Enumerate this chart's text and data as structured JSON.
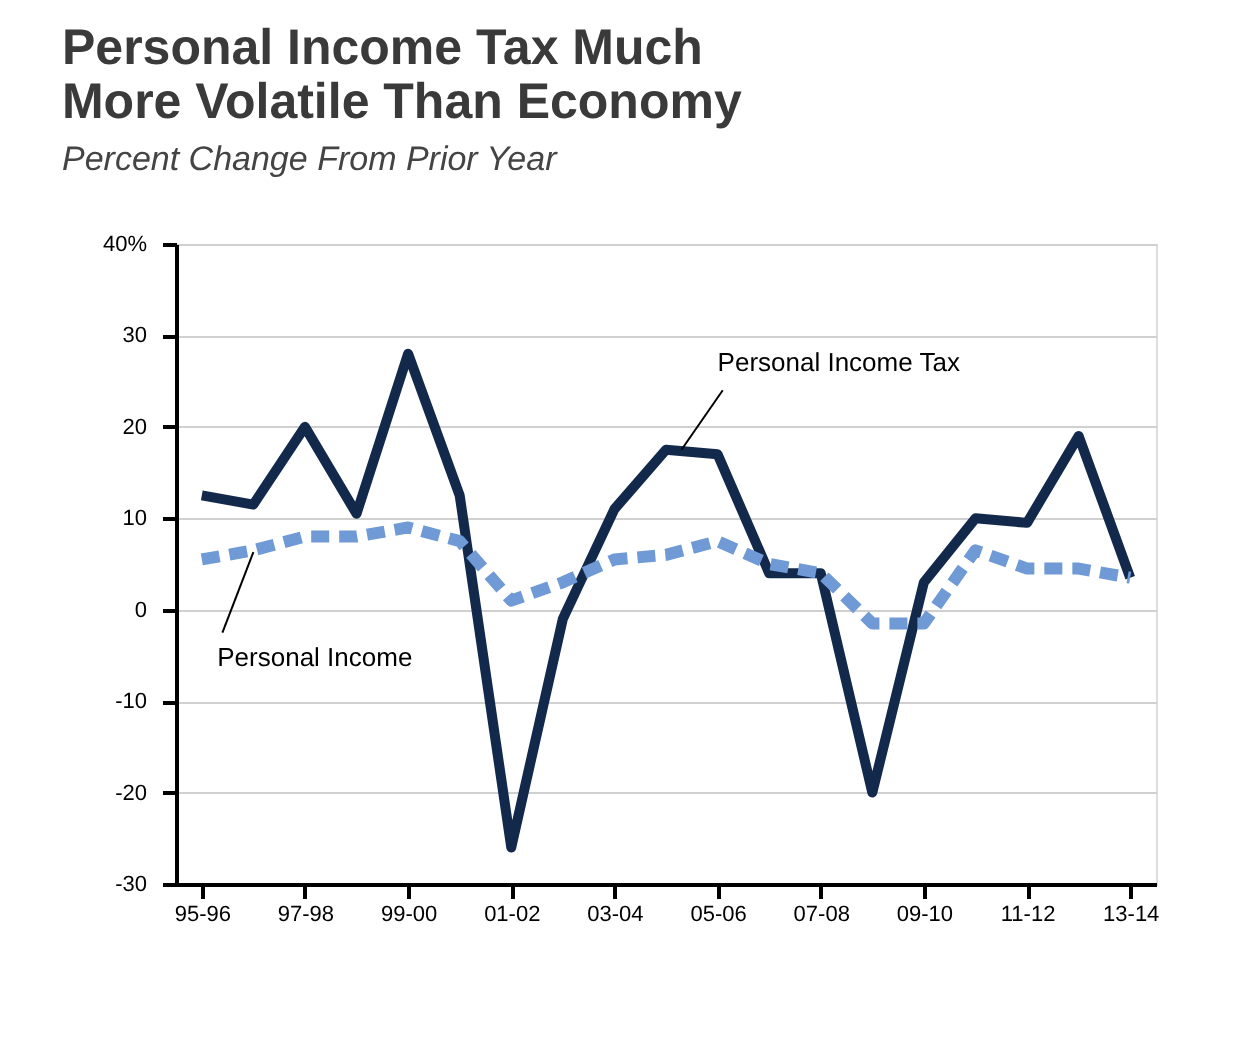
{
  "chart_data": {
    "type": "line",
    "title": [
      "Personal Income Tax Much",
      "More Volatile Than Economy"
    ],
    "subtitle": "Percent Change From Prior Year",
    "categories": [
      "95-96",
      null,
      "97-98",
      null,
      "99-00",
      null,
      "01-02",
      null,
      "03-04",
      null,
      "05-06",
      null,
      "07-08",
      null,
      "09-10",
      null,
      "11-12",
      null,
      "13-14"
    ],
    "series": [
      {
        "name": "Personal Income Tax",
        "color": "#13294b",
        "line_style": "solid",
        "values": [
          12.5,
          11.5,
          20,
          10.5,
          28,
          12.5,
          -26,
          -1,
          11,
          17.5,
          17,
          4,
          4,
          -20,
          3,
          10,
          9.5,
          19,
          3.5
        ]
      },
      {
        "name": "Personal Income",
        "color": "#6f9ad6",
        "line_style": "dashed",
        "values": [
          5.5,
          6.5,
          8,
          8,
          9,
          7.5,
          1,
          3,
          5.5,
          6,
          7.5,
          5,
          4,
          -1.5,
          -1.5,
          6.5,
          4.5,
          4.5,
          3.5
        ]
      }
    ],
    "ylim": [
      -30,
      40
    ],
    "yticks": [
      -30,
      -20,
      -10,
      0,
      10,
      20,
      30,
      {
        "value": 40,
        "label": "40%"
      }
    ],
    "grid": "y",
    "legend": false,
    "marker": "none"
  }
}
